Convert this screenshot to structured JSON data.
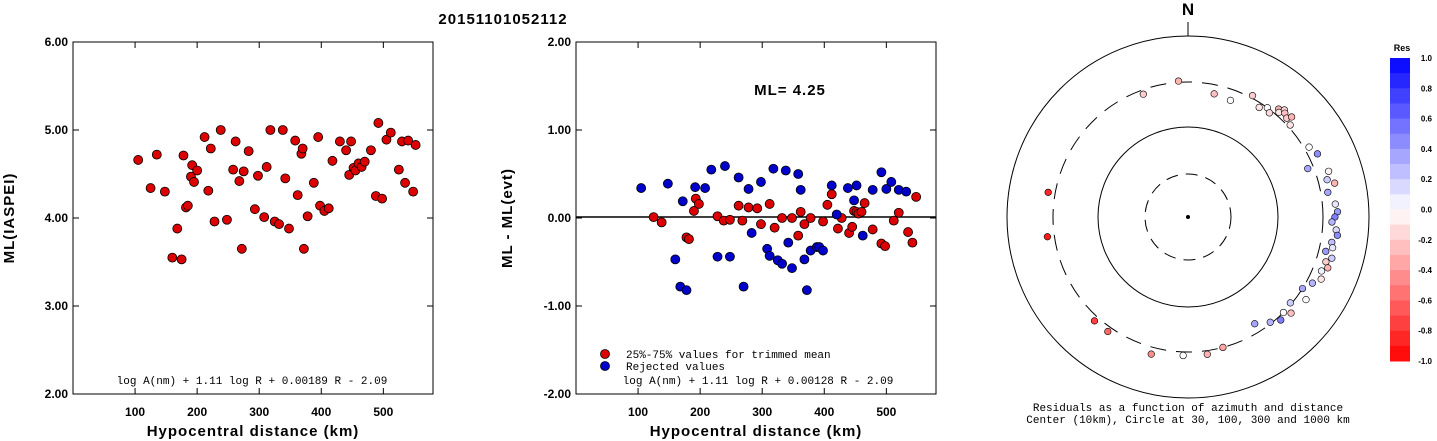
{
  "title": "20151101052112",
  "chart_data": [
    {
      "type": "scatter",
      "xlabel": "Hypocentral distance (km)",
      "ylabel": "ML(IASPEI)",
      "xlim": [
        0,
        580
      ],
      "ylim": [
        2.0,
        6.0
      ],
      "xticks": [
        "100",
        "200",
        "300",
        "400",
        "500"
      ],
      "yticks": [
        "2.00",
        "3.00",
        "4.00",
        "5.00",
        "6.00"
      ],
      "formula": "log A(nm) + 1.11 log R + 0.00189 R - 2.09",
      "point_color": "#dd0000",
      "x": [
        105,
        125,
        135,
        148,
        160,
        168,
        175,
        178,
        182,
        185,
        190,
        192,
        195,
        200,
        212,
        218,
        222,
        228,
        238,
        248,
        258,
        262,
        268,
        272,
        275,
        283,
        293,
        298,
        308,
        312,
        318,
        325,
        332,
        338,
        342,
        348,
        358,
        362,
        368,
        370,
        372,
        378,
        388,
        395,
        398,
        405,
        412,
        418,
        430,
        440,
        445,
        448,
        452,
        455,
        460,
        465,
        470,
        480,
        488,
        492,
        498,
        505,
        512,
        525,
        530,
        535,
        540,
        548,
        552
      ],
      "y": [
        4.66,
        4.34,
        4.72,
        4.3,
        3.55,
        3.88,
        3.53,
        4.71,
        4.12,
        4.14,
        4.47,
        4.6,
        4.41,
        4.54,
        4.92,
        4.31,
        4.79,
        3.96,
        5.0,
        3.98,
        4.55,
        4.87,
        4.42,
        3.65,
        4.53,
        4.76,
        4.1,
        4.48,
        4.01,
        4.58,
        5.0,
        3.96,
        3.93,
        5.0,
        4.45,
        3.88,
        4.88,
        4.26,
        4.73,
        4.79,
        3.65,
        4.02,
        4.4,
        4.92,
        4.14,
        4.08,
        4.11,
        4.65,
        4.87,
        4.77,
        4.49,
        4.87,
        4.57,
        4.54,
        4.62,
        4.58,
        4.64,
        4.77,
        4.25,
        5.08,
        4.22,
        4.89,
        4.97,
        4.55,
        4.87,
        4.4,
        4.88,
        4.3,
        4.83
      ]
    },
    {
      "type": "scatter",
      "xlabel": "Hypocentral distance (km)",
      "ylabel": "ML - ML(evt)",
      "xlim": [
        0,
        580
      ],
      "ylim": [
        -2.0,
        2.0
      ],
      "xticks": [
        "100",
        "200",
        "300",
        "400",
        "500"
      ],
      "yticks": [
        "-2.00",
        "-1.00",
        "0.00",
        "1.00",
        "2.00"
      ],
      "annotation": "ML= 4.25",
      "formula": "log A(nm) + 1.11 log R + 0.00128 R - 2.09",
      "legend": [
        {
          "label": "25%-75% values for trimmed mean",
          "color": "#dd0000"
        },
        {
          "label": "Rejected values",
          "color": "#0000cc"
        }
      ],
      "series": [
        {
          "name": "25%-75% values for trimmed mean",
          "color": "#dd0000",
          "x": [
            125,
            138,
            178,
            182,
            190,
            193,
            198,
            228,
            238,
            248,
            262,
            268,
            278,
            292,
            298,
            312,
            320,
            332,
            348,
            358,
            362,
            368,
            378,
            398,
            405,
            412,
            422,
            428,
            440,
            445,
            448,
            452,
            455,
            460,
            465,
            478,
            492,
            498,
            512,
            520,
            535,
            542,
            548
          ],
          "y": [
            0.01,
            -0.05,
            -0.22,
            -0.24,
            0.08,
            0.22,
            0.16,
            0.02,
            -0.03,
            -0.02,
            0.14,
            -0.03,
            0.12,
            0.11,
            -0.07,
            0.16,
            -0.11,
            0.0,
            0.0,
            -0.2,
            0.07,
            -0.07,
            0.0,
            -0.04,
            0.15,
            0.27,
            -0.12,
            0.0,
            -0.17,
            -0.1,
            0.08,
            0.07,
            0.05,
            0.07,
            0.17,
            -0.13,
            -0.29,
            -0.32,
            -0.03,
            0.06,
            -0.16,
            -0.28,
            0.24
          ]
        },
        {
          "name": "Rejected values",
          "color": "#0000cc",
          "x": [
            105,
            148,
            160,
            168,
            172,
            178,
            192,
            208,
            218,
            228,
            240,
            248,
            262,
            270,
            278,
            283,
            298,
            308,
            312,
            318,
            325,
            332,
            338,
            342,
            348,
            358,
            362,
            368,
            372,
            378,
            388,
            392,
            398,
            412,
            420,
            438,
            448,
            452,
            462,
            478,
            492,
            500,
            508,
            520,
            532
          ],
          "y": [
            0.34,
            0.39,
            -0.47,
            -0.78,
            0.19,
            -0.82,
            0.35,
            0.34,
            0.55,
            -0.44,
            0.59,
            -0.44,
            0.46,
            -0.78,
            0.33,
            -0.17,
            0.41,
            -0.35,
            -0.43,
            0.56,
            -0.48,
            -0.52,
            0.54,
            -0.28,
            -0.57,
            0.5,
            0.32,
            -0.47,
            -0.82,
            -0.37,
            -0.33,
            -0.33,
            -0.37,
            0.37,
            0.04,
            0.34,
            0.2,
            0.37,
            -0.2,
            0.32,
            0.52,
            0.33,
            0.41,
            0.32,
            0.3
          ]
        }
      ]
    },
    {
      "type": "polar-scatter",
      "north_label": "N",
      "caption_lines": [
        "Residuals as a function of azimuth and distance",
        "Center (10km), Circle at 30, 100, 300 and 1000 km"
      ],
      "colorbar": {
        "title": "Res",
        "ticks": [
          "1.0",
          "0.8",
          "0.6",
          "0.4",
          "0.2",
          "0.0",
          "-0.2",
          "-0.4",
          "-0.6",
          "-0.8",
          "-1.0"
        ]
      },
      "stations": [
        {
          "az": 356,
          "dist": 310,
          "res": -0.3
        },
        {
          "az": 12,
          "dist": 240,
          "res": -0.25
        },
        {
          "az": 340,
          "dist": 270,
          "res": -0.2
        },
        {
          "az": 20,
          "dist": 230,
          "res": 0.0
        },
        {
          "az": 28,
          "dist": 320,
          "res": -0.2
        },
        {
          "az": 33,
          "dist": 270,
          "res": -0.1
        },
        {
          "az": 36,
          "dist": 300,
          "res": 0.0
        },
        {
          "az": 38,
          "dist": 280,
          "res": -0.15
        },
        {
          "az": 40,
          "dist": 350,
          "res": -0.3
        },
        {
          "az": 41,
          "dist": 330,
          "res": -0.1
        },
        {
          "az": 42,
          "dist": 380,
          "res": -0.15
        },
        {
          "az": 43,
          "dist": 360,
          "res": -0.25
        },
        {
          "az": 45,
          "dist": 340,
          "res": -0.2
        },
        {
          "az": 46,
          "dist": 380,
          "res": -0.3
        },
        {
          "az": 48,
          "dist": 320,
          "res": -0.1
        },
        {
          "az": 60,
          "dist": 340,
          "res": 0.0
        },
        {
          "az": 64,
          "dist": 380,
          "res": 0.45
        },
        {
          "az": 68,
          "dist": 260,
          "res": 0.35
        },
        {
          "az": 72,
          "dist": 420,
          "res": -0.05
        },
        {
          "az": 75,
          "dist": 380,
          "res": 0.2
        },
        {
          "az": 77,
          "dist": 450,
          "res": -0.3
        },
        {
          "az": 80,
          "dist": 360,
          "res": 0.35
        },
        {
          "az": 85,
          "dist": 420,
          "res": 0.1
        },
        {
          "az": 88,
          "dist": 440,
          "res": 0.4
        },
        {
          "az": 90,
          "dist": 410,
          "res": 0.5
        },
        {
          "az": 92,
          "dist": 380,
          "res": 0.3
        },
        {
          "az": 95,
          "dist": 430,
          "res": 0.15
        },
        {
          "az": 97,
          "dist": 450,
          "res": 0.45
        },
        {
          "az": 100,
          "dist": 400,
          "res": 0.25
        },
        {
          "az": 102,
          "dist": 420,
          "res": 0.1
        },
        {
          "az": 104,
          "dist": 360,
          "res": 0.4
        },
        {
          "az": 106,
          "dist": 440,
          "res": 0.2
        },
        {
          "az": 108,
          "dist": 390,
          "res": -0.2
        },
        {
          "az": 110,
          "dist": 430,
          "res": -0.3
        },
        {
          "az": 112,
          "dist": 380,
          "res": 0.05
        },
        {
          "az": 115,
          "dist": 410,
          "res": -0.1
        },
        {
          "az": 118,
          "dist": 350,
          "res": 0.3
        },
        {
          "az": 122,
          "dist": 300,
          "res": 0.35
        },
        {
          "az": 125,
          "dist": 380,
          "res": 0.0
        },
        {
          "az": 130,
          "dist": 290,
          "res": 0.2
        },
        {
          "az": 133,
          "dist": 350,
          "res": -0.25
        },
        {
          "az": 135,
          "dist": 300,
          "res": 0.0
        },
        {
          "az": 138,
          "dist": 330,
          "res": 0.5
        },
        {
          "az": 142,
          "dist": 290,
          "res": 0.3
        },
        {
          "az": 148,
          "dist": 240,
          "res": 0.35
        },
        {
          "az": 165,
          "dist": 300,
          "res": -0.35
        },
        {
          "az": 172,
          "dist": 330,
          "res": -0.3
        },
        {
          "az": 182,
          "dist": 330,
          "res": 0.0
        },
        {
          "az": 195,
          "dist": 360,
          "res": -0.45
        },
        {
          "az": 215,
          "dist": 340,
          "res": -0.6
        },
        {
          "az": 222,
          "dist": 340,
          "res": -0.75
        },
        {
          "az": 262,
          "dist": 360,
          "res": -0.9
        },
        {
          "az": 280,
          "dist": 360,
          "res": -0.85
        }
      ]
    }
  ]
}
